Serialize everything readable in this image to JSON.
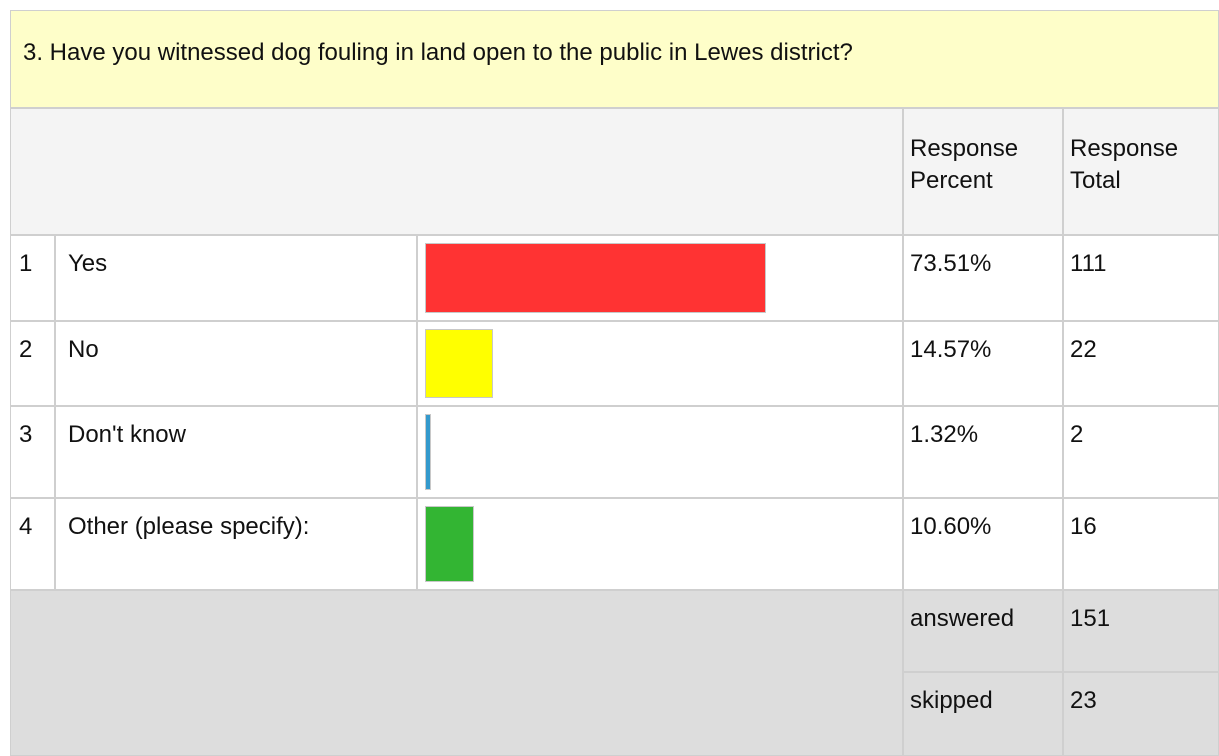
{
  "question": {
    "title": "3. Have you witnessed dog fouling in land open to the public in Lewes district?"
  },
  "table": {
    "headers": {
      "percent": "Response Percent",
      "total": "Response Total"
    },
    "rows": [
      {
        "index": 1,
        "label": "Yes",
        "percent": 73.51,
        "percent_label": "73.51%",
        "total": 111,
        "color": "#ff3333"
      },
      {
        "index": 2,
        "label": "No",
        "percent": 14.57,
        "percent_label": "14.57%",
        "total": 22,
        "color": "#ffff00"
      },
      {
        "index": 3,
        "label": "Don't know",
        "percent": 1.32,
        "percent_label": "1.32%",
        "total": 2,
        "color": "#3399cc"
      },
      {
        "index": 4,
        "label": "Other (please specify):",
        "percent": 10.6,
        "percent_label": "10.60%",
        "total": 16,
        "color": "#33b533"
      }
    ],
    "summary": [
      {
        "label": "answered",
        "value": 151
      },
      {
        "label": "skipped",
        "value": 23
      }
    ]
  }
}
